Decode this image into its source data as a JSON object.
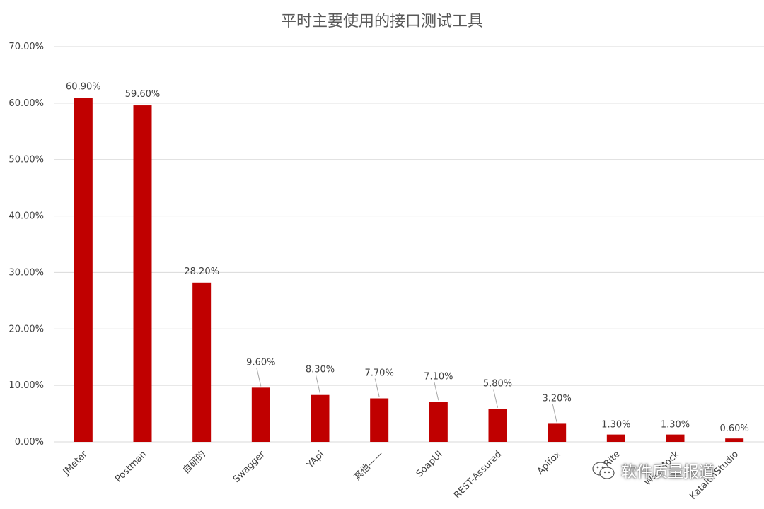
{
  "chart_data": {
    "type": "bar",
    "title": "平时主要使用的接口测试工具",
    "categories": [
      "JMeter",
      "Postman",
      "自研的",
      "Swagger",
      "YApi",
      "其他——",
      "SoapUI",
      "REST-Assured",
      "Apifox",
      "Rite",
      "WireMock",
      "KatalonStudio"
    ],
    "values": [
      60.9,
      59.6,
      28.2,
      9.6,
      8.3,
      7.7,
      7.1,
      5.8,
      3.2,
      1.3,
      1.3,
      0.6
    ],
    "data_labels": [
      "60.90%",
      "59.60%",
      "28.20%",
      "9.60%",
      "8.30%",
      "7.70%",
      "7.10%",
      "5.80%",
      "3.20%",
      "1.30%",
      "1.30%",
      "0.60%"
    ],
    "yticks": [
      "0.00%",
      "10.00%",
      "20.00%",
      "30.00%",
      "40.00%",
      "50.00%",
      "60.00%",
      "70.00%"
    ],
    "ylim": [
      0,
      70
    ],
    "grid": true,
    "legend": "none",
    "xlabel": "",
    "ylabel": "",
    "colors": {
      "bar": "#c00000",
      "grid": "#d9d9d9",
      "text": "#404040",
      "title": "#595959"
    }
  },
  "watermark": {
    "text": "软件质量报道",
    "icon": "wechat-icon"
  }
}
